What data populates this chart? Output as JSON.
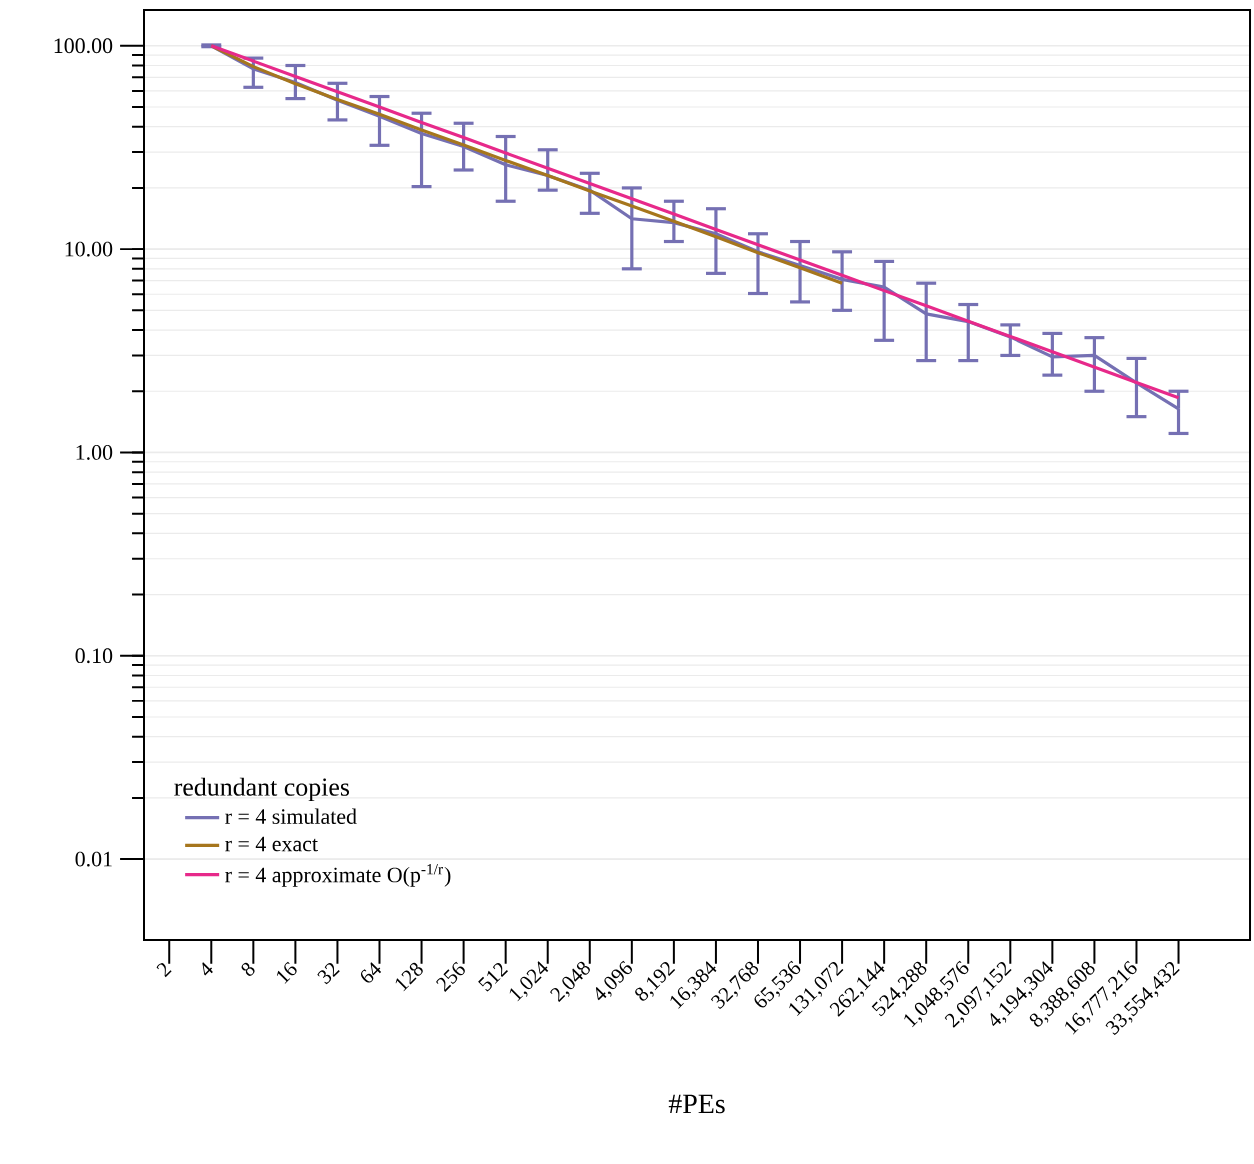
{
  "chart_data": {
    "type": "line",
    "xlabel": "#PEs",
    "legend_title": "redundant copies",
    "categories": [
      "2",
      "4",
      "8",
      "16",
      "32",
      "64",
      "128",
      "256",
      "512",
      "1,024",
      "2,048",
      "4,096",
      "8,192",
      "16,384",
      "32,768",
      "65,536",
      "131,072",
      "262,144",
      "524,288",
      "1,048,576",
      "2,097,152",
      "4,194,304",
      "8,388,608",
      "16,777,216",
      "33,554,432"
    ],
    "series": [
      {
        "name": "r = 4 simulated",
        "color": "#7570b3",
        "values": [
          null,
          100,
          77,
          66,
          54,
          45,
          37,
          32,
          26,
          23,
          19.5,
          14.1,
          13.5,
          11.9,
          9.7,
          8.3,
          7.1,
          6.5,
          4.8,
          4.4,
          3.7,
          2.95,
          3.0,
          2.2,
          1.64
        ],
        "errors": [
          null,
          [
            99,
            101
          ],
          [
            62.5,
            87
          ],
          [
            55,
            80
          ],
          [
            43.2,
            65.4
          ],
          [
            32.4,
            56.3
          ],
          [
            20.3,
            46.6
          ],
          [
            24.5,
            41.6
          ],
          [
            17.2,
            35.8
          ],
          [
            19.5,
            30.8
          ],
          [
            15,
            23.6
          ],
          [
            8.0,
            20
          ],
          [
            10.9,
            17.2
          ],
          [
            7.6,
            15.8
          ],
          [
            6.05,
            11.9
          ],
          [
            5.5,
            10.9
          ],
          [
            5.0,
            9.7
          ],
          [
            3.56,
            8.7
          ],
          [
            2.83,
            6.8
          ],
          [
            2.83,
            5.34
          ],
          [
            3.0,
            4.24
          ],
          [
            2.4,
            3.85
          ],
          [
            2.0,
            3.67
          ],
          [
            1.5,
            2.9
          ],
          [
            1.24,
            2.0
          ]
        ]
      },
      {
        "name": "r = 4 exact",
        "color": "#a6761d",
        "values": [
          null,
          100,
          79,
          65,
          54.5,
          46,
          38.5,
          32.5,
          27.3,
          23,
          19.3,
          16.3,
          13.7,
          11.5,
          9.6,
          8.1,
          6.8,
          null,
          null,
          null,
          null,
          null,
          null,
          null,
          null
        ]
      },
      {
        "name": "r = 4 approximate O(p$^{-1/r}$)",
        "color": "#e7298a",
        "values": [
          null,
          100,
          84.1,
          70.7,
          59.5,
          50,
          42.0,
          35.4,
          29.7,
          25,
          21.0,
          17.7,
          14.9,
          12.5,
          10.5,
          8.84,
          7.43,
          6.25,
          5.26,
          4.42,
          3.72,
          3.13,
          2.63,
          2.21,
          1.86
        ]
      }
    ],
    "log": "y",
    "ylim": [
      0.004,
      150
    ],
    "yticks": [
      {
        "value": 0.01,
        "label": "0.01"
      },
      {
        "value": 0.1,
        "label": "0.10"
      },
      {
        "value": 1,
        "label": "1.00"
      },
      {
        "value": 10,
        "label": "10.00"
      },
      {
        "value": 100,
        "label": "100.00"
      }
    ],
    "grid": "y",
    "legend": "bottom left",
    "line_style": "solid"
  }
}
